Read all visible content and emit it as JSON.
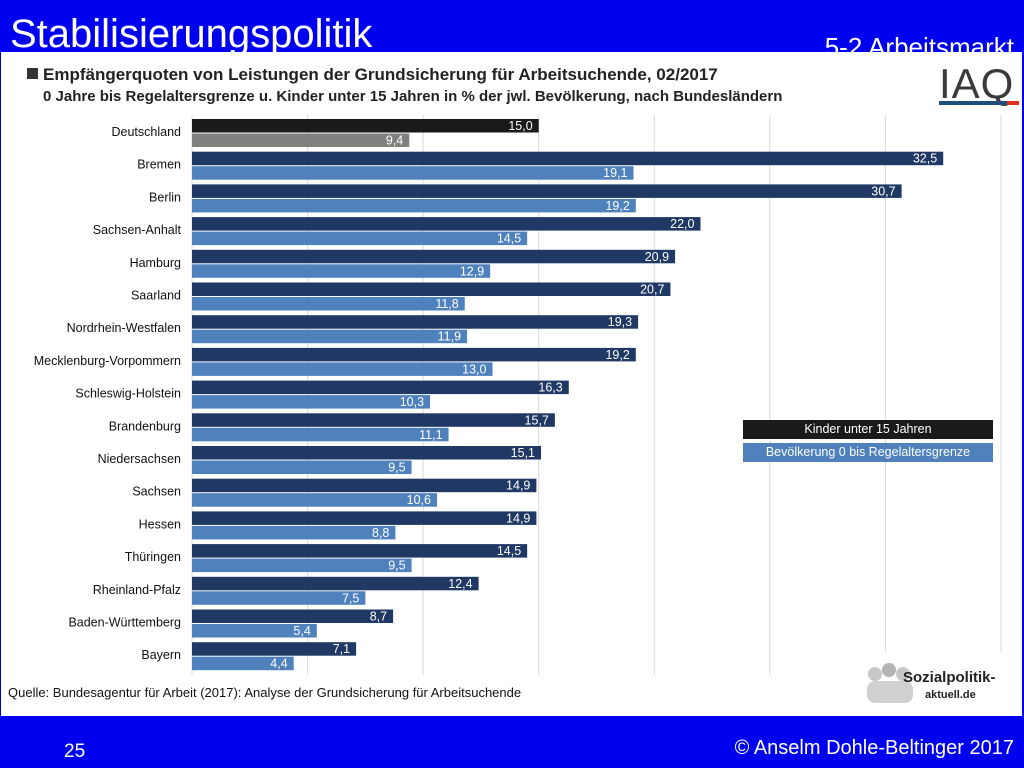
{
  "slide": {
    "title": "Stabilisierungspolitik",
    "section": "5-2 Arbeitsmarkt",
    "page_number": "25",
    "copyright": "© Anselm Dohle-Beltinger 2017"
  },
  "logos": {
    "iaq": "IAQ",
    "sozialpolitik_line1": "Sozialpolitik-",
    "sozialpolitik_line2": "aktuell.de"
  },
  "colors": {
    "kinder": "#1f3864",
    "bevoelkerung": "#4f81bd",
    "deutschland_kinder": "#1a1a1a",
    "deutschland_bevoelkerung": "#808080",
    "background": "#0000ee"
  },
  "chart_data": {
    "type": "bar",
    "orientation": "horizontal",
    "title": "Empfängerquoten von Leistungen der Grundsicherung für Arbeitsuchende, 02/2017",
    "subtitle": "0 Jahre bis Regelaltersgrenze u. Kinder unter 15 Jahren in % der jwl. Bevölkerung, nach Bundesländern",
    "source": "Quelle: Bundesagentur für Arbeit (2017): Analyse der Grundsicherung für Arbeitsuchende",
    "categories": [
      "Deutschland",
      "Bremen",
      "Berlin",
      "Sachsen-Anhalt",
      "Hamburg",
      "Saarland",
      "Nordrhein-Westfalen",
      "Mecklenburg-Vorpommern",
      "Schleswig-Holstein",
      "Brandenburg",
      "Niedersachsen",
      "Sachsen",
      "Hessen",
      "Thüringen",
      "Rheinland-Pfalz",
      "Baden-Württemberg",
      "Bayern"
    ],
    "series": [
      {
        "name": "Kinder unter 15 Jahren",
        "values": [
          15.0,
          32.5,
          30.7,
          22.0,
          20.9,
          20.7,
          19.3,
          19.2,
          16.3,
          15.7,
          15.1,
          14.9,
          14.9,
          14.5,
          12.4,
          8.7,
          7.1
        ],
        "labels": [
          "15,0",
          "32,5",
          "30,7",
          "22,0",
          "20,9",
          "20,7",
          "19,3",
          "19,2",
          "16,3",
          "15,7",
          "15,1",
          "14,9",
          "14,9",
          "14,5",
          "12,4",
          "8,7",
          "7,1"
        ]
      },
      {
        "name": "Bevölkerung 0  bis Regelaltersgrenze",
        "values": [
          9.4,
          19.1,
          19.2,
          14.5,
          12.9,
          11.8,
          11.9,
          13.0,
          10.3,
          11.1,
          9.5,
          10.6,
          8.8,
          9.5,
          7.5,
          5.4,
          4.4
        ],
        "labels": [
          "9,4",
          "19,1",
          "19,2",
          "14,5",
          "12,9",
          "11,8",
          "11,9",
          "13,0",
          "10,3",
          "11,1",
          "9,5",
          "10,6",
          "8,8",
          "9,5",
          "7,5",
          "5,4",
          "4,4"
        ]
      }
    ],
    "xlim": [
      0,
      35
    ],
    "grid": true,
    "legend_position": "right-middle"
  }
}
